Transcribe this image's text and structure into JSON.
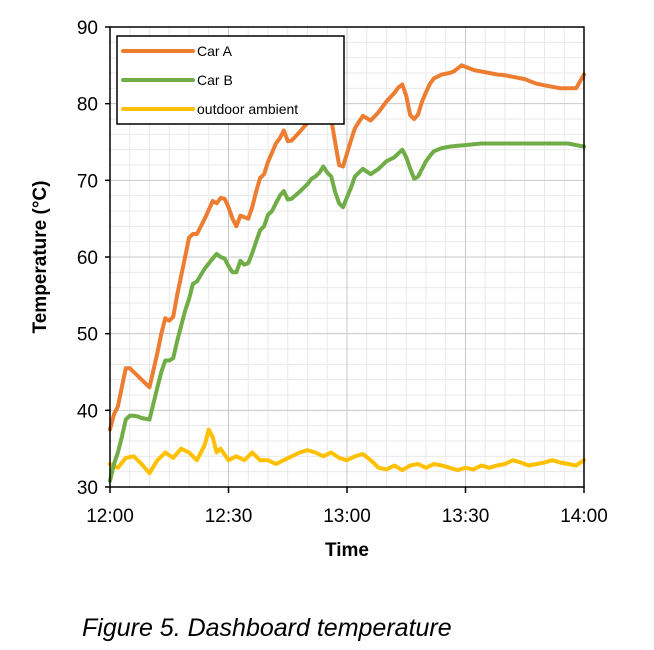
{
  "caption": "Figure 5. Dashboard temperature",
  "chart_data": {
    "type": "line",
    "xlabel": "Time",
    "ylabel": "Temperature (°C)",
    "x_ticks": [
      "12:00",
      "12:30",
      "13:00",
      "13:30",
      "14:00"
    ],
    "x_tick_minutes": [
      0,
      30,
      60,
      90,
      120
    ],
    "xlim": [
      0,
      120
    ],
    "ylim": [
      30,
      90
    ],
    "y_ticks": [
      30,
      40,
      50,
      60,
      70,
      80,
      90
    ],
    "grid": true,
    "legend_position": "top-left",
    "series": [
      {
        "name": "Car A",
        "color": "#ED7D31",
        "x": [
          0,
          1,
          2,
          3,
          4,
          5,
          6,
          7,
          8,
          10,
          12,
          13,
          14,
          15,
          16,
          17,
          18,
          19,
          20,
          21,
          22,
          24,
          26,
          27,
          28,
          29,
          30,
          31,
          32,
          33,
          34,
          35,
          36,
          37,
          38,
          39,
          40,
          41,
          42,
          43,
          44,
          45,
          46,
          48,
          50,
          51,
          52,
          53,
          54,
          55,
          56,
          57,
          58,
          59,
          60,
          61,
          62,
          64,
          66,
          68,
          70,
          72,
          73,
          74,
          75,
          76,
          77,
          78,
          79,
          80,
          81,
          82,
          84,
          86,
          87,
          88,
          89,
          90,
          91,
          92,
          94,
          96,
          98,
          100,
          101,
          102,
          103,
          104,
          105,
          106,
          107,
          108,
          110,
          112,
          114,
          116,
          118,
          120
        ],
        "y": [
          37.5,
          39.5,
          40.5,
          43.0,
          45.5,
          45.5,
          45.0,
          44.5,
          44.0,
          43.0,
          47.5,
          50.0,
          52.0,
          51.7,
          52.2,
          55.0,
          57.5,
          60.0,
          62.5,
          63.0,
          63.0,
          65.0,
          67.3,
          67.0,
          67.7,
          67.6,
          66.5,
          65.0,
          64.0,
          65.4,
          65.2,
          65.0,
          66.5,
          68.5,
          70.3,
          70.8,
          72.4,
          73.6,
          74.8,
          75.5,
          76.5,
          75.1,
          75.2,
          76.3,
          77.5,
          78.2,
          78.5,
          79.2,
          79.3,
          78.2,
          78.0,
          75.0,
          72.0,
          71.8,
          73.5,
          75.2,
          76.8,
          78.4,
          77.8,
          78.9,
          80.3,
          81.4,
          82.1,
          82.5,
          81.0,
          78.5,
          78.0,
          78.6,
          80.3,
          81.5,
          82.6,
          83.3,
          83.8,
          84.0,
          84.2,
          84.6,
          85.0,
          84.8,
          84.6,
          84.4,
          84.2,
          84.0,
          83.8,
          83.7,
          83.6,
          83.5,
          83.4,
          83.3,
          83.2,
          83.0,
          82.8,
          82.6,
          82.4,
          82.2,
          82.0,
          82.0,
          82.0,
          83.8
        ]
      },
      {
        "name": "Car B",
        "color": "#70AD47",
        "x": [
          0,
          1,
          2,
          3,
          4,
          5,
          6,
          7,
          8,
          10,
          12,
          13,
          14,
          15,
          16,
          17,
          18,
          19,
          20,
          21,
          22,
          24,
          26,
          27,
          28,
          29,
          30,
          31,
          32,
          33,
          34,
          35,
          36,
          37,
          38,
          39,
          40,
          41,
          42,
          43,
          44,
          45,
          46,
          48,
          50,
          51,
          52,
          53,
          54,
          55,
          56,
          57,
          58,
          59,
          60,
          61,
          62,
          64,
          66,
          68,
          70,
          72,
          73,
          74,
          75,
          76,
          77,
          78,
          79,
          80,
          81,
          82,
          84,
          86,
          88,
          90,
          92,
          94,
          96,
          98,
          100,
          102,
          104,
          106,
          108,
          110,
          112,
          114,
          116,
          118,
          120
        ],
        "y": [
          30.8,
          33.0,
          34.5,
          36.5,
          38.8,
          39.3,
          39.3,
          39.2,
          39.0,
          38.8,
          43.0,
          45.0,
          46.5,
          46.5,
          46.8,
          49.0,
          51.0,
          53.0,
          54.5,
          56.5,
          56.8,
          58.5,
          59.8,
          60.4,
          60.0,
          59.8,
          58.8,
          58.0,
          58.0,
          59.5,
          59.0,
          59.2,
          60.5,
          62.0,
          63.5,
          64.0,
          65.5,
          66.0,
          67.0,
          68.0,
          68.6,
          67.5,
          67.6,
          68.5,
          69.5,
          70.2,
          70.5,
          71.0,
          71.8,
          71.0,
          70.5,
          68.5,
          67.0,
          66.5,
          67.8,
          69.0,
          70.5,
          71.5,
          70.8,
          71.5,
          72.5,
          73.0,
          73.5,
          74.0,
          73.0,
          71.5,
          70.2,
          70.5,
          71.5,
          72.5,
          73.2,
          73.8,
          74.2,
          74.4,
          74.5,
          74.6,
          74.7,
          74.8,
          74.8,
          74.8,
          74.8,
          74.8,
          74.8,
          74.8,
          74.8,
          74.8,
          74.8,
          74.8,
          74.8,
          74.6,
          74.4
        ]
      },
      {
        "name": "outdoor ambient",
        "color": "#FFC000",
        "x": [
          0,
          2,
          4,
          6,
          8,
          10,
          12,
          14,
          16,
          18,
          20,
          22,
          24,
          25,
          26,
          27,
          28,
          30,
          32,
          34,
          36,
          38,
          40,
          42,
          44,
          46,
          48,
          50,
          52,
          54,
          56,
          58,
          60,
          62,
          64,
          66,
          68,
          70,
          72,
          74,
          76,
          78,
          80,
          82,
          84,
          86,
          88,
          90,
          92,
          94,
          96,
          98,
          100,
          102,
          104,
          106,
          108,
          110,
          112,
          114,
          116,
          118,
          120
        ],
        "y": [
          33.0,
          32.5,
          33.8,
          34.0,
          33.0,
          31.8,
          33.5,
          34.5,
          33.8,
          35.0,
          34.5,
          33.5,
          35.5,
          37.5,
          36.5,
          34.5,
          35.0,
          33.5,
          34.0,
          33.5,
          34.5,
          33.5,
          33.5,
          33.0,
          33.5,
          34.0,
          34.5,
          34.8,
          34.5,
          34.0,
          34.5,
          33.8,
          33.5,
          34.0,
          34.3,
          33.5,
          32.5,
          32.3,
          32.8,
          32.2,
          32.8,
          33.0,
          32.5,
          33.0,
          32.8,
          32.5,
          32.2,
          32.5,
          32.3,
          32.8,
          32.5,
          32.8,
          33.0,
          33.5,
          33.2,
          32.8,
          33.0,
          33.2,
          33.5,
          33.2,
          33.0,
          32.8,
          33.5
        ]
      }
    ]
  }
}
